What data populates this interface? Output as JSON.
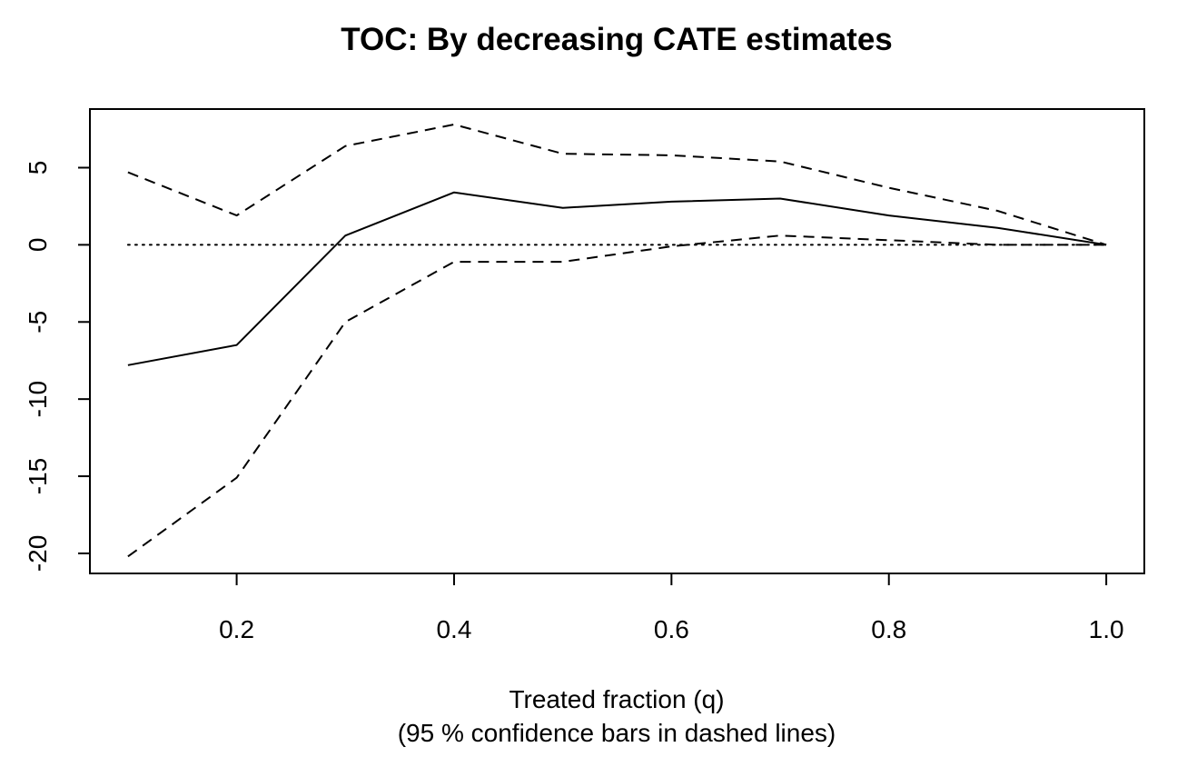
{
  "chart_data": {
    "type": "line",
    "title": "TOC: By decreasing CATE estimates",
    "xlabel": "Treated fraction (q)",
    "xlabel_sub": "(95 % confidence bars in dashed lines)",
    "ylabel": "",
    "xlim": [
      0.065,
      1.035
    ],
    "ylim": [
      -21.3,
      8.8
    ],
    "x_ticks": [
      "0.2",
      "0.4",
      "0.6",
      "0.8",
      "1.0"
    ],
    "y_ticks": [
      "-20",
      "-15",
      "-10",
      "-5",
      "0",
      "5"
    ],
    "x": [
      0.1,
      0.2,
      0.3,
      0.4,
      0.5,
      0.6,
      0.7,
      0.8,
      0.9,
      1.0
    ],
    "series": [
      {
        "style": "solid",
        "values": [
          -7.8,
          -6.5,
          0.6,
          3.4,
          2.4,
          2.8,
          3.0,
          1.9,
          1.1,
          0.0
        ]
      },
      {
        "style": "dashed",
        "values": [
          4.7,
          1.9,
          6.4,
          7.8,
          5.9,
          5.8,
          5.4,
          3.7,
          2.2,
          0.0
        ]
      },
      {
        "style": "dashed",
        "values": [
          -20.2,
          -15.1,
          -5.0,
          -1.1,
          -1.1,
          -0.1,
          0.6,
          0.3,
          0.0,
          0.0
        ]
      }
    ],
    "reference_line": {
      "y": 0,
      "style": "dotted"
    },
    "grid": false,
    "legend": "none"
  }
}
